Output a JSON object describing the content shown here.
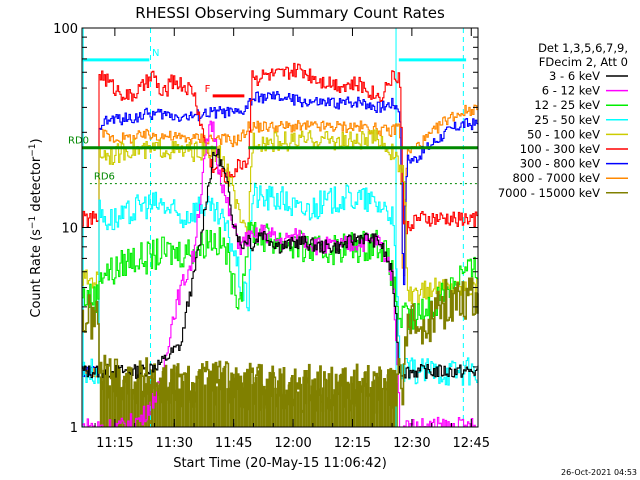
{
  "chart_data": {
    "type": "line",
    "title": "RHESSI Observing Summary Count Rates",
    "xlabel": "Start Time (20-May-15 11:06:42)",
    "ylabel": "Count Rate (s⁻¹ detector⁻¹)",
    "ylabel_main": "Count Rate (s",
    "ylabel_sup1": "−1",
    "ylabel_mid": " detector",
    "ylabel_sup2": "−1",
    "ylabel_end": ")",
    "yscale": "log",
    "xlim_min": [
      0,
      100
    ],
    "ylim": [
      1,
      100
    ],
    "x_ticks": [
      {
        "min": 8.3,
        "label": "11:15"
      },
      {
        "min": 23.3,
        "label": "11:30"
      },
      {
        "min": 38.3,
        "label": "11:45"
      },
      {
        "min": 53.3,
        "label": "12:00"
      },
      {
        "min": 68.3,
        "label": "12:15"
      },
      {
        "min": 83.3,
        "label": "12:30"
      },
      {
        "min": 98.3,
        "label": "12:45"
      }
    ],
    "y_ticks": [
      {
        "value": 1,
        "label": "1"
      },
      {
        "value": 10,
        "label": "10"
      },
      {
        "value": 100,
        "label": "100"
      }
    ],
    "legend_position": "top-right",
    "legend_header": [
      "Det 1,3,5,6,7,9,",
      "FDecim 2, Att 0"
    ],
    "series": [
      {
        "name": "3 - 6 keV",
        "color": "#000000",
        "x": [
          0,
          4,
          4.2,
          10,
          15,
          20,
          25,
          28,
          30,
          32,
          33,
          34,
          36,
          38,
          40,
          42,
          43,
          45,
          48,
          50,
          55,
          60,
          65,
          70,
          75,
          78,
          80,
          81,
          82,
          84,
          88,
          92,
          96,
          100
        ],
        "y": [
          1.9,
          1.9,
          1.9,
          1.9,
          1.9,
          2.1,
          2.6,
          5.5,
          9,
          17,
          22,
          24,
          18,
          11,
          8,
          9,
          8,
          9.5,
          8.5,
          8,
          8.5,
          8,
          8,
          9,
          8.5,
          6,
          1.9,
          1.9,
          1.9,
          1.9,
          1.9,
          1.9,
          1.9,
          1.9
        ]
      },
      {
        "name": "6 - 12 keV",
        "color": "#ff00ff",
        "x": [
          0,
          4,
          4.2,
          10,
          15,
          20,
          25,
          28,
          30,
          32,
          33,
          34,
          36,
          38,
          40,
          42,
          43,
          45,
          48,
          50,
          55,
          60,
          65,
          70,
          75,
          78,
          80,
          81,
          82,
          84,
          88,
          92,
          96,
          100
        ],
        "y": [
          1,
          1,
          1,
          1,
          1.1,
          1.6,
          5,
          7,
          15,
          30,
          33,
          22,
          14,
          10,
          8,
          9,
          8.5,
          9.5,
          9,
          8.5,
          9,
          8,
          8,
          8.5,
          8.5,
          6,
          1,
          1,
          1,
          1,
          1,
          1,
          1,
          1
        ]
      },
      {
        "name": "12 - 25 keV",
        "color": "#00ee00",
        "x": [
          0,
          4,
          4.2,
          8,
          12,
          16,
          20,
          25,
          30,
          32,
          34,
          36,
          38,
          40,
          42,
          43,
          45,
          50,
          55,
          60,
          65,
          70,
          75,
          78,
          80,
          81,
          82,
          84,
          88,
          92,
          96,
          100
        ],
        "y": [
          4.5,
          4.5,
          6,
          6,
          7,
          7,
          7.5,
          7.5,
          8,
          9,
          8.5,
          8,
          5,
          4.5,
          9,
          10,
          9,
          8.5,
          8,
          7.5,
          8,
          8,
          8.5,
          6,
          3.5,
          3.5,
          3.5,
          3.5,
          4,
          5,
          6,
          6
        ]
      },
      {
        "name": "25 - 50 keV",
        "color": "#00ffff",
        "x": [
          0,
          4,
          4.2,
          6,
          10,
          15,
          20,
          25,
          30,
          35,
          38,
          40,
          42,
          43,
          45,
          50,
          55,
          60,
          65,
          70,
          75,
          78,
          80,
          81,
          82,
          84,
          88,
          92,
          96,
          100
        ],
        "y": [
          1.9,
          1.9,
          12,
          11,
          11,
          13,
          13,
          11,
          13,
          11,
          8,
          5,
          4.2,
          15,
          14,
          14,
          12,
          13,
          14,
          14,
          13,
          12,
          1.9,
          1.9,
          1.9,
          1.9,
          1.9,
          1.9,
          1.9,
          1.9
        ]
      },
      {
        "name": "50 - 100 keV",
        "color": "#cccc00",
        "x": [
          0,
          4,
          4.2,
          8,
          12,
          16,
          20,
          25,
          30,
          35,
          40,
          42,
          43,
          45,
          50,
          55,
          60,
          65,
          70,
          75,
          78,
          80,
          81,
          82,
          84,
          88,
          92,
          96,
          100
        ],
        "y": [
          5.5,
          5.5,
          24,
          23,
          25,
          24,
          25,
          24,
          24,
          23,
          10,
          10,
          28,
          27,
          27,
          27,
          28,
          27,
          27,
          28,
          24,
          20,
          20,
          4.5,
          4.5,
          5,
          5,
          5,
          5
        ]
      },
      {
        "name": "100 - 300 keV",
        "color": "#ff0000",
        "x": [
          0,
          4,
          4.2,
          8,
          12,
          15,
          18,
          20,
          23,
          25,
          28,
          30,
          32,
          34,
          36,
          38,
          40,
          42,
          43,
          44,
          46,
          50,
          55,
          60,
          65,
          70,
          75,
          78,
          80,
          81,
          82,
          84,
          88,
          92,
          96,
          100
        ],
        "y": [
          11,
          11,
          60,
          50,
          45,
          50,
          58,
          45,
          55,
          52,
          48,
          32,
          22,
          19,
          18,
          19,
          21,
          22,
          62,
          56,
          58,
          58,
          62,
          55,
          52,
          52,
          45,
          56,
          58,
          10,
          10,
          11,
          11,
          11,
          11,
          11
        ]
      },
      {
        "name": "300 - 800 keV",
        "color": "#0000ff",
        "x": [
          0,
          4,
          4.2,
          8,
          12,
          16,
          20,
          25,
          28,
          30,
          35,
          40,
          43,
          45,
          50,
          55,
          60,
          65,
          70,
          75,
          78,
          80,
          81,
          82,
          84,
          88,
          92,
          96,
          100
        ],
        "y": [
          1.9,
          1.9,
          33,
          35,
          35,
          37,
          37,
          36,
          36,
          37,
          38,
          37,
          44,
          45,
          45,
          43,
          42,
          42,
          43,
          40,
          42,
          40,
          1.9,
          22,
          22,
          26,
          30,
          33,
          33
        ]
      },
      {
        "name": "800 - 7000 keV",
        "color": "#ff8800",
        "x": [
          0,
          4,
          4.2,
          8,
          12,
          16,
          20,
          25,
          30,
          35,
          38,
          40,
          42,
          45,
          50,
          55,
          60,
          65,
          70,
          75,
          78,
          80,
          81,
          82,
          84,
          88,
          92,
          96,
          100
        ],
        "y": [
          1.9,
          1.9,
          30,
          28,
          28,
          29,
          29,
          28,
          28,
          28,
          27,
          28,
          32,
          32,
          32,
          32,
          32,
          32,
          32,
          31,
          30,
          33,
          1.9,
          24,
          25,
          29,
          35,
          38,
          40
        ]
      },
      {
        "name": "7000 - 15000 keV",
        "color": "#808000",
        "x": [
          0,
          4,
          4.2,
          8,
          12,
          16,
          20,
          25,
          30,
          35,
          38,
          40,
          42,
          45,
          50,
          55,
          60,
          65,
          70,
          75,
          78,
          80,
          81,
          82,
          84,
          88,
          92,
          96,
          100
        ],
        "y": [
          3.5,
          3.5,
          1.8,
          1.8,
          1.7,
          1.7,
          1.6,
          1.6,
          1.6,
          1.7,
          1.6,
          1.5,
          1.5,
          1.6,
          1.5,
          1.5,
          1.5,
          1.6,
          1.5,
          1.5,
          1.5,
          1.7,
          1.7,
          3,
          3.3,
          3.5,
          4.2,
          4.5,
          4.5
        ]
      }
    ],
    "annotations": [
      {
        "label": "N",
        "color": "#00ffff",
        "x1": 0,
        "x2": 17,
        "level": 92,
        "style": "solid"
      },
      {
        "label": "",
        "color": "#00ffff",
        "x1": 80,
        "x2": 97,
        "level": 92,
        "style": "solid"
      },
      {
        "label": "F",
        "color": "#ff0000",
        "x1": 33,
        "x2": 41,
        "level": 83,
        "style": "solid"
      },
      {
        "label": "RD0",
        "color": "#008800",
        "x1": 0,
        "x2": 34,
        "level": 70,
        "style": "solid"
      },
      {
        "label": "",
        "color": "#008800",
        "x1": 42,
        "x2": 100,
        "level": 70,
        "style": "solid"
      },
      {
        "label": "RD6",
        "color": "#008800",
        "x1": 2,
        "x2": 100,
        "level": 61,
        "style": "dashed"
      }
    ],
    "vlines_solid": [
      {
        "min": 0.3,
        "color": "#00ffff"
      },
      {
        "min": 79.3,
        "color": "#00ffff"
      }
    ],
    "vlines_dashed": [
      {
        "min": 17.3,
        "color": "#00ffff"
      },
      {
        "min": 96.3,
        "color": "#00ffff"
      }
    ],
    "stamp": "26-Oct-2021 04:53"
  }
}
